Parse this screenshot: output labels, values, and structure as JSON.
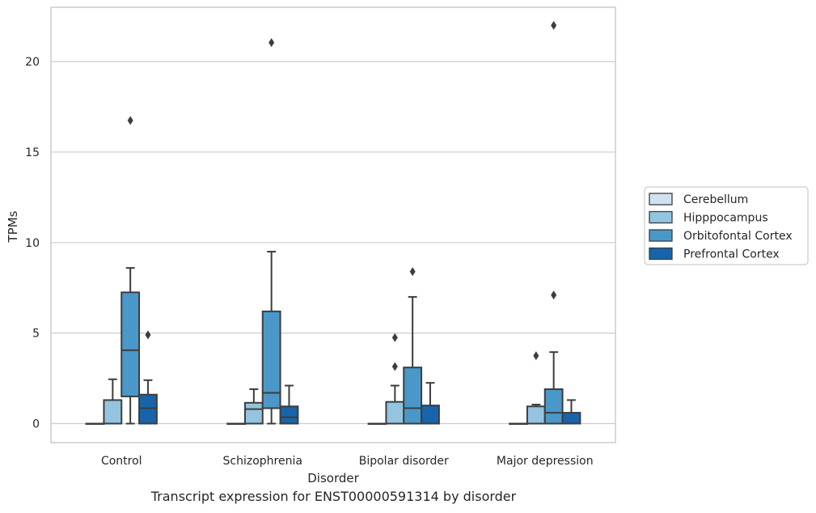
{
  "chart_data": {
    "type": "box",
    "caption": "Transcript expression for ENST00000591314 by disorder",
    "xlabel": "Disorder",
    "ylabel": "TPMs",
    "ylim": [
      -1.05,
      23
    ],
    "yticks": [
      0,
      5,
      10,
      15,
      20
    ],
    "grid": "horizontal",
    "legend_position": "right",
    "categories": [
      "Control",
      "Schizophrenia",
      "Bipolar disorder",
      "Major depression"
    ],
    "series": [
      {
        "name": "Cerebellum",
        "color": "#d0e1f2",
        "boxes": [
          {
            "whislo": 0,
            "q1": 0,
            "med": 0,
            "q3": 0,
            "whishi": 0,
            "fliers": []
          },
          {
            "whislo": 0,
            "q1": 0,
            "med": 0,
            "q3": 0,
            "whishi": 0,
            "fliers": []
          },
          {
            "whislo": 0,
            "q1": 0,
            "med": 0,
            "q3": 0,
            "whishi": 0,
            "fliers": []
          },
          {
            "whislo": 0,
            "q1": 0,
            "med": 0,
            "q3": 0,
            "whishi": 0,
            "fliers": []
          }
        ]
      },
      {
        "name": "Hipppocampus",
        "color": "#94c4df",
        "boxes": [
          {
            "whislo": 0,
            "q1": 0,
            "med": 0,
            "q3": 1.3,
            "whishi": 2.45,
            "fliers": []
          },
          {
            "whislo": 0,
            "q1": 0,
            "med": 0.8,
            "q3": 1.15,
            "whishi": 1.9,
            "fliers": []
          },
          {
            "whislo": 0,
            "q1": 0,
            "med": 0,
            "q3": 1.2,
            "whishi": 2.1,
            "fliers": [
              3.15,
              4.75
            ]
          },
          {
            "whislo": 0,
            "q1": 0,
            "med": 0,
            "q3": 0.95,
            "whishi": 1.05,
            "fliers": [
              3.75
            ]
          }
        ]
      },
      {
        "name": "Orbitofontal Cortex",
        "color": "#4a98c9",
        "boxes": [
          {
            "whislo": 0,
            "q1": 1.5,
            "med": 4.05,
            "q3": 7.25,
            "whishi": 8.6,
            "fliers": [
              16.75
            ]
          },
          {
            "whislo": 0,
            "q1": 0.85,
            "med": 1.7,
            "q3": 6.2,
            "whishi": 9.5,
            "fliers": [
              21.05
            ]
          },
          {
            "whislo": 0,
            "q1": 0,
            "med": 0.85,
            "q3": 3.1,
            "whishi": 7.0,
            "fliers": [
              8.4
            ]
          },
          {
            "whislo": 0,
            "q1": 0,
            "med": 0.6,
            "q3": 1.9,
            "whishi": 3.95,
            "fliers": [
              7.1,
              22.0
            ]
          }
        ]
      },
      {
        "name": "Prefrontal Cortex",
        "color": "#1764ab",
        "boxes": [
          {
            "whislo": 0,
            "q1": 0,
            "med": 0.85,
            "q3": 1.6,
            "whishi": 2.4,
            "fliers": [
              4.9
            ]
          },
          {
            "whislo": 0,
            "q1": 0,
            "med": 0.35,
            "q3": 0.95,
            "whishi": 2.1,
            "fliers": []
          },
          {
            "whislo": 0,
            "q1": 0,
            "med": 0,
            "q3": 1.0,
            "whishi": 2.25,
            "fliers": []
          },
          {
            "whislo": 0,
            "q1": 0,
            "med": 0,
            "q3": 0.6,
            "whishi": 1.3,
            "fliers": []
          }
        ]
      }
    ]
  }
}
